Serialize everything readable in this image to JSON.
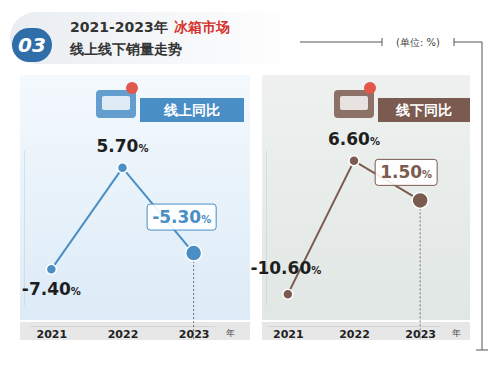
{
  "header": {
    "badge": "03",
    "title": "2021-2023年",
    "highlight": "冰箱市场",
    "subtitle": "线上线下销量走势",
    "unit": "(单位: %)"
  },
  "chart_data": [
    {
      "type": "line",
      "title": "线上同比",
      "categories": [
        "2021",
        "2022",
        "2023"
      ],
      "x_label": "年",
      "values": [
        -7.4,
        5.7,
        -5.3
      ],
      "value_labels": [
        "-7.40%",
        "5.70%",
        "-5.30%"
      ],
      "color": "#4a8ec6",
      "ylim": [
        -12,
        8
      ],
      "data_labels": true,
      "tick_labels": "x",
      "marker": "circle"
    },
    {
      "type": "line",
      "title": "线下同比",
      "categories": [
        "2021",
        "2022",
        "2023"
      ],
      "x_label": "年",
      "values": [
        -10.6,
        6.6,
        1.5
      ],
      "value_labels": [
        "-10.60%",
        "6.60%",
        "1.50%"
      ],
      "color": "#7b5a4f",
      "ylim": [
        -12,
        8
      ],
      "data_labels": true,
      "tick_labels": "x",
      "marker": "circle"
    }
  ]
}
